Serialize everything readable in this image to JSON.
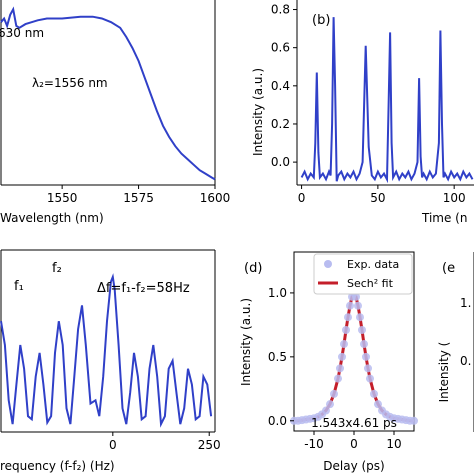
{
  "colors": {
    "trace": "#3040c8",
    "fit": "#c41e2a",
    "exp": "#b8bcf0",
    "axis": "#000000"
  },
  "chart_data": [
    {
      "id": "a",
      "type": "line",
      "panel_label": "",
      "xlabel": "Wavelength (nm)",
      "ylabel": "",
      "xlim": [
        1530,
        1600
      ],
      "ylim": [
        0,
        1
      ],
      "xticks": [
        1550,
        1575,
        1600
      ],
      "yticks": [],
      "annotations": [
        "630 nm",
        "λ₂=1556 nm"
      ],
      "series": [
        {
          "x": [
            1530,
            1531,
            1532,
            1533,
            1534,
            1535,
            1536,
            1538,
            1540,
            1542,
            1545,
            1548,
            1550,
            1553,
            1556,
            1560,
            1563,
            1566,
            1569,
            1571,
            1573,
            1575,
            1577,
            1579,
            1581,
            1583,
            1585,
            1587,
            1589,
            1591,
            1593,
            1595,
            1597,
            1599,
            1600
          ],
          "y": [
            0.88,
            0.9,
            0.86,
            0.92,
            0.95,
            0.86,
            0.85,
            0.87,
            0.88,
            0.89,
            0.9,
            0.9,
            0.9,
            0.905,
            0.91,
            0.91,
            0.9,
            0.88,
            0.85,
            0.8,
            0.74,
            0.67,
            0.58,
            0.49,
            0.4,
            0.32,
            0.26,
            0.21,
            0.17,
            0.14,
            0.11,
            0.08,
            0.06,
            0.04,
            0.03
          ]
        }
      ]
    },
    {
      "id": "b",
      "type": "line",
      "panel_label": "(b)",
      "xlabel": "Time (n",
      "ylabel": "Intensity (a.u.)",
      "xlim": [
        -3,
        113
      ],
      "ylim": [
        -0.12,
        0.85
      ],
      "xticks": [
        0,
        50,
        100
      ],
      "yticks": [
        0.0,
        0.2,
        0.4,
        0.6,
        0.8
      ],
      "series": [
        {
          "x": [
            0,
            2,
            4,
            6,
            8,
            9,
            10,
            11,
            12,
            14,
            16,
            18,
            19,
            20,
            21,
            22,
            23,
            24,
            26,
            28,
            30,
            32,
            34,
            36,
            38,
            40,
            42,
            44,
            46,
            48,
            50,
            52,
            54,
            56,
            57,
            58,
            59,
            60,
            62,
            64,
            66,
            68,
            70,
            72,
            74,
            76,
            77,
            78,
            79,
            80,
            82,
            84,
            86,
            88,
            90,
            91,
            92,
            93,
            94,
            96,
            98,
            100,
            102,
            104,
            106,
            108,
            110,
            112
          ],
          "y": [
            -0.08,
            -0.05,
            -0.09,
            -0.06,
            -0.08,
            0.1,
            0.47,
            0.05,
            -0.08,
            -0.06,
            -0.09,
            -0.05,
            -0.07,
            0.2,
            0.76,
            0.4,
            -0.1,
            -0.07,
            -0.05,
            -0.09,
            -0.06,
            -0.08,
            -0.05,
            -0.09,
            -0.06,
            0.0,
            0.61,
            0.08,
            -0.07,
            -0.09,
            -0.05,
            -0.08,
            -0.06,
            -0.09,
            0.3,
            0.68,
            0.1,
            -0.08,
            -0.05,
            -0.09,
            -0.06,
            -0.08,
            -0.05,
            -0.09,
            -0.06,
            0.0,
            0.44,
            0.03,
            -0.08,
            -0.06,
            -0.09,
            -0.05,
            -0.08,
            -0.06,
            0.1,
            0.69,
            0.2,
            -0.08,
            -0.06,
            -0.09,
            -0.05,
            -0.08,
            -0.06,
            -0.09,
            -0.05,
            -0.08,
            -0.06,
            -0.09
          ]
        }
      ]
    },
    {
      "id": "c",
      "type": "line",
      "panel_label": "",
      "xlabel": "requency (f-f₂) (Hz)",
      "ylabel": "",
      "xlim": [
        -290,
        265
      ],
      "ylim": [
        0,
        1.15
      ],
      "xticks": [
        0,
        250
      ],
      "xtick_labels": [
        "0",
        "250"
      ],
      "annotations": [
        "f₁",
        "f₂",
        "Δf=f₁-f₂=58Hz"
      ],
      "series": [
        {
          "x": [
            -290,
            -280,
            -270,
            -260,
            -250,
            -240,
            -230,
            -220,
            -210,
            -200,
            -190,
            -180,
            -170,
            -160,
            -150,
            -140,
            -130,
            -120,
            -110,
            -100,
            -90,
            -80,
            -70,
            -58,
            -45,
            -35,
            -25,
            -15,
            -5,
            0,
            5,
            15,
            25,
            35,
            45,
            55,
            65,
            75,
            85,
            95,
            105,
            115,
            125,
            135,
            145,
            155,
            165,
            175,
            185,
            195,
            205,
            215,
            225,
            235,
            245,
            255
          ],
          "y": [
            0.7,
            0.55,
            0.2,
            0.05,
            0.3,
            0.55,
            0.4,
            0.1,
            0.08,
            0.35,
            0.5,
            0.3,
            0.06,
            0.1,
            0.5,
            0.7,
            0.55,
            0.15,
            0.05,
            0.35,
            0.65,
            0.8,
            0.55,
            0.18,
            0.2,
            0.1,
            0.35,
            0.7,
            0.95,
            0.98,
            0.9,
            0.55,
            0.15,
            0.05,
            0.25,
            0.5,
            0.35,
            0.08,
            0.1,
            0.4,
            0.55,
            0.35,
            0.05,
            0.1,
            0.4,
            0.45,
            0.25,
            0.05,
            0.15,
            0.4,
            0.3,
            0.08,
            0.1,
            0.35,
            0.3,
            0.1
          ]
        }
      ]
    },
    {
      "id": "d",
      "type": "line",
      "panel_label": "(d)",
      "xlabel": "Delay (ps)",
      "ylabel": "Intensity (a.u.)",
      "xlim": [
        -15,
        15
      ],
      "ylim": [
        -0.08,
        1.32
      ],
      "xticks": [
        -10,
        0,
        10
      ],
      "yticks": [
        0.0,
        0.5,
        1.0
      ],
      "annotation": "1.543x4.61 ps",
      "legend": [
        "Exp. data",
        "Sech² fit"
      ],
      "legend_position": "top",
      "series": [
        {
          "name": "Exp. data",
          "style": "markers",
          "x": [
            -15,
            -14,
            -13,
            -12,
            -11,
            -10,
            -9,
            -8,
            -7,
            -6,
            -5,
            -4,
            -3.5,
            -3,
            -2.5,
            -2,
            -1.5,
            -1,
            -0.5,
            0,
            0.5,
            1,
            1.5,
            2,
            2.5,
            3,
            3.5,
            4,
            5,
            6,
            7,
            8,
            9,
            10,
            11,
            12,
            13,
            14,
            15
          ],
          "y": [
            0.0,
            0.0,
            0.005,
            0.01,
            0.015,
            0.02,
            0.03,
            0.05,
            0.08,
            0.13,
            0.21,
            0.33,
            0.41,
            0.5,
            0.6,
            0.71,
            0.81,
            0.9,
            0.97,
            1.0,
            0.97,
            0.9,
            0.81,
            0.71,
            0.6,
            0.5,
            0.41,
            0.33,
            0.21,
            0.13,
            0.08,
            0.05,
            0.03,
            0.02,
            0.015,
            0.01,
            0.005,
            0.0,
            0.0
          ]
        },
        {
          "name": "Sech² fit",
          "style": "line",
          "x": [
            -15,
            -14,
            -13,
            -12,
            -11,
            -10,
            -9,
            -8,
            -7,
            -6,
            -5,
            -4,
            -3.5,
            -3,
            -2.5,
            -2,
            -1.5,
            -1,
            -0.5,
            0,
            0.5,
            1,
            1.5,
            2,
            2.5,
            3,
            3.5,
            4,
            5,
            6,
            7,
            8,
            9,
            10,
            11,
            12,
            13,
            14,
            15
          ],
          "y": [
            0.0,
            0.0,
            0.005,
            0.01,
            0.015,
            0.02,
            0.03,
            0.05,
            0.08,
            0.13,
            0.21,
            0.33,
            0.41,
            0.5,
            0.6,
            0.71,
            0.81,
            0.9,
            0.97,
            1.0,
            0.97,
            0.9,
            0.81,
            0.71,
            0.6,
            0.5,
            0.41,
            0.33,
            0.21,
            0.13,
            0.08,
            0.05,
            0.03,
            0.02,
            0.015,
            0.01,
            0.005,
            0.0,
            0.0
          ]
        }
      ]
    },
    {
      "id": "e",
      "type": "line",
      "panel_label": "(e",
      "xlabel": "",
      "ylabel": "Intensity (",
      "ytick_labels": [
        "1.",
        "0."
      ],
      "series": []
    }
  ]
}
